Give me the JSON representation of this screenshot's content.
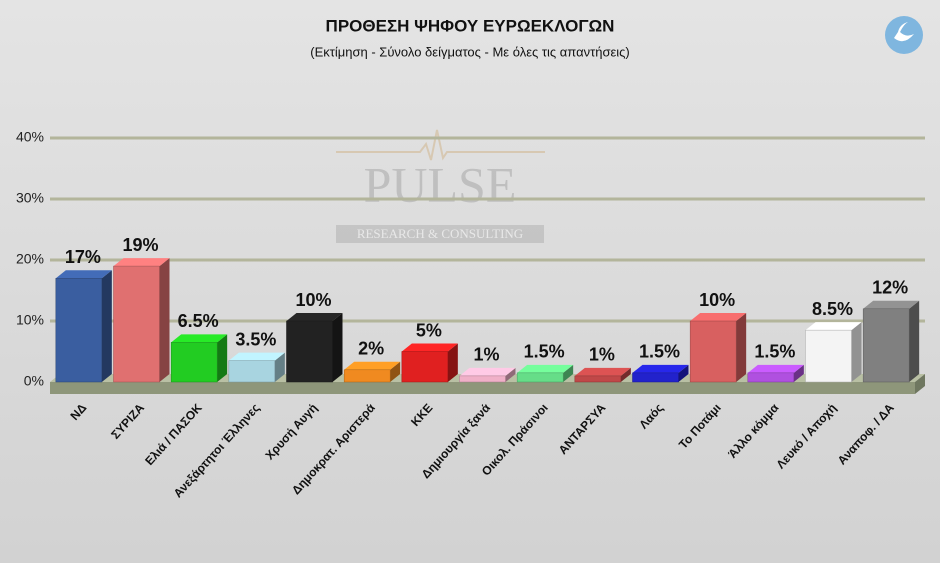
{
  "chart_data": {
    "type": "bar3d",
    "title": "ΠΡΟΘΕΣΗ ΨΗΦΟΥ ΕΥΡΩΕΚΛΟΓΩΝ",
    "subtitle": "(Εκτίμηση - Σύνολο δείγματος - Με όλες τις απαντήσεις)",
    "watermark": "PULSE",
    "watermark_subtitle": "RESEARCH & CONSULTING",
    "categories": [
      "ΝΔ",
      "ΣΥΡΙΖΑ",
      "Ελιά / ΠΑΣΟΚ",
      "Ανεξάρτητοι Έλληνες",
      "Χρυσή Αυγή",
      "Δημοκρατ. Αριστερά",
      "ΚΚΕ",
      "Δημιουργία ξανά",
      "Οικολ. Πράσινοι",
      "ΑΝΤΑΡΣΥΑ",
      "Λαός",
      "Το Ποτάμι",
      "Άλλο κόμμα",
      "Λευκό / Αποχή",
      "Αναποφ. / ΔΑ"
    ],
    "values": [
      17,
      19,
      6.5,
      3.5,
      10,
      2,
      5,
      1,
      1.5,
      1,
      1.5,
      10,
      1.5,
      8.5,
      12
    ],
    "value_labels": [
      "17%",
      "19%",
      "6.5%",
      "3.5%",
      "10%",
      "2%",
      "5%",
      "1%",
      "1.5%",
      "1%",
      "1.5%",
      "10%",
      "1.5%",
      "8.5%",
      "12%"
    ],
    "colors": [
      "#3a5ea0",
      "#e07070",
      "#22cc22",
      "#a8d4e0",
      "#222222",
      "#f08a20",
      "#e02020",
      "#f0b0c8",
      "#66dd88",
      "#c04848",
      "#2222cc",
      "#d86060",
      "#b050e0",
      "#f4f4f4",
      "#808080"
    ],
    "ylim": [
      0,
      40
    ],
    "yticks": [
      {
        "value": 0,
        "label": "0%"
      },
      {
        "value": 10,
        "label": "10%"
      },
      {
        "value": 20,
        "label": "20%"
      },
      {
        "value": 30,
        "label": "30%"
      },
      {
        "value": 40,
        "label": "40%"
      }
    ],
    "grid": true
  }
}
